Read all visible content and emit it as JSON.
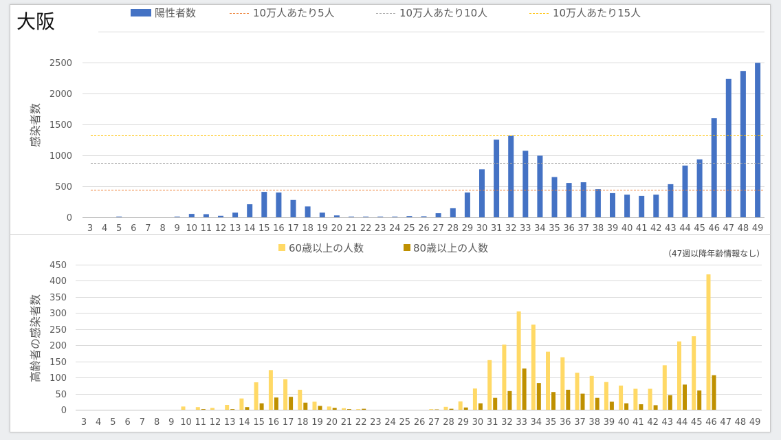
{
  "title": "大阪",
  "chart_data": [
    {
      "type": "bar",
      "categories": [
        3,
        4,
        5,
        6,
        7,
        8,
        9,
        10,
        11,
        12,
        13,
        14,
        15,
        16,
        17,
        18,
        19,
        20,
        21,
        22,
        23,
        24,
        25,
        26,
        27,
        28,
        29,
        30,
        31,
        32,
        33,
        34,
        35,
        36,
        37,
        38,
        39,
        40,
        41,
        42,
        43,
        44,
        45,
        46,
        47,
        48,
        49
      ],
      "series": [
        {
          "name": "陽性者数",
          "color": "#4472c4",
          "values": [
            0,
            0,
            10,
            0,
            0,
            0,
            10,
            55,
            50,
            25,
            75,
            210,
            410,
            400,
            280,
            175,
            75,
            30,
            10,
            10,
            10,
            10,
            20,
            15,
            65,
            145,
            400,
            775,
            1255,
            1320,
            1075,
            995,
            650,
            555,
            565,
            455,
            390,
            365,
            345,
            365,
            535,
            835,
            935,
            1600,
            2235,
            2365,
            2495
          ]
        }
      ],
      "reference_lines": [
        {
          "name": "10万人あたり5人",
          "value": 441,
          "color": "#ed7d31",
          "dashed": true
        },
        {
          "name": "10万人あたり10人",
          "value": 882,
          "color": "#a5a5a5",
          "dashed": true
        },
        {
          "name": "10万人あたり15人",
          "value": 1323,
          "color": "#ffc000",
          "dashed": true
        }
      ],
      "ylabel": "感染者数",
      "ylim": [
        0,
        2500
      ],
      "yticks": [
        0,
        500,
        1000,
        1500,
        2000,
        2500
      ],
      "grid": true,
      "legend": "top"
    },
    {
      "type": "bar",
      "categories": [
        3,
        4,
        5,
        6,
        7,
        8,
        9,
        10,
        11,
        12,
        13,
        14,
        15,
        16,
        17,
        18,
        19,
        20,
        21,
        22,
        23,
        24,
        25,
        26,
        27,
        28,
        29,
        30,
        31,
        32,
        33,
        34,
        35,
        36,
        37,
        38,
        39,
        40,
        41,
        42,
        43,
        44,
        45,
        46,
        47,
        48,
        49
      ],
      "series": [
        {
          "name": "60歳以上の人数",
          "color": "#ffd966",
          "values": [
            0,
            0,
            0,
            0,
            0,
            0,
            0,
            10,
            8,
            6,
            15,
            35,
            85,
            123,
            95,
            62,
            25,
            10,
            5,
            2,
            0,
            0,
            0,
            0,
            2,
            9,
            26,
            66,
            154,
            202,
            305,
            264,
            180,
            163,
            115,
            105,
            86,
            75,
            65,
            65,
            138,
            212,
            228,
            420,
            null,
            null,
            null
          ]
        },
        {
          "name": "80歳以上の人数",
          "color": "#bf9000",
          "values": [
            0,
            0,
            0,
            0,
            0,
            0,
            0,
            0,
            2,
            0,
            2,
            8,
            20,
            38,
            40,
            22,
            12,
            6,
            2,
            3,
            0,
            0,
            0,
            0,
            1,
            3,
            7,
            20,
            37,
            58,
            128,
            83,
            55,
            62,
            50,
            37,
            25,
            20,
            17,
            14,
            45,
            78,
            60,
            107,
            null,
            null,
            null
          ]
        }
      ],
      "annotation": "（47週以降年齢情報なし）",
      "ylabel": "高齢者の感染者数",
      "ylim": [
        0,
        450
      ],
      "yticks": [
        0,
        50,
        100,
        150,
        200,
        250,
        300,
        350,
        400,
        450
      ],
      "grid": true,
      "legend": "top"
    }
  ]
}
